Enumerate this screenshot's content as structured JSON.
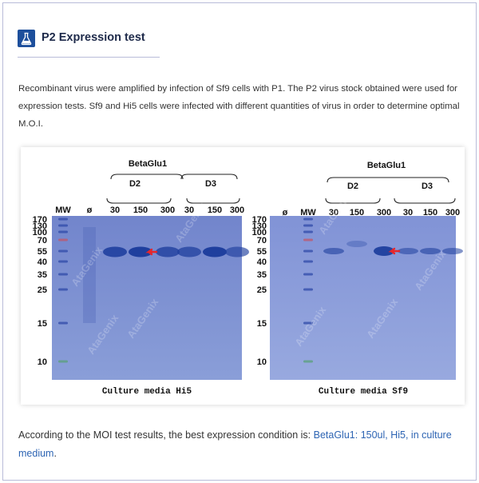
{
  "section": {
    "title": "P2 Expression test",
    "icon": "flask-icon"
  },
  "intro": {
    "text": "Recombinant virus were amplified by infection of Sf9 cells with P1. The P2 virus stock obtained were used for expression tests. Sf9 and Hi5 cells were infected with different quantities of virus in order to determine optimal M.O.I."
  },
  "figure": {
    "construct_label": "BetaGlu1",
    "watermark": "AtaGenix",
    "left_gel": {
      "groups": [
        "D2",
        "D3"
      ],
      "lane_labels": [
        "MW",
        "ø",
        "30",
        "150",
        "300",
        "30",
        "150",
        "300"
      ],
      "mw_markers": [
        "170",
        "130",
        "100",
        "70",
        "55",
        "40",
        "35",
        "25",
        "15",
        "10"
      ],
      "caption": "Culture media Hi5"
    },
    "right_gel": {
      "groups": [
        "D2",
        "D3"
      ],
      "lane_labels": [
        "ø",
        "MW",
        "30",
        "150",
        "300",
        "30",
        "150",
        "300"
      ],
      "mw_markers": [
        "170",
        "130",
        "100",
        "70",
        "55",
        "40",
        "35",
        "25",
        "15",
        "10"
      ],
      "caption": "Culture media Sf9"
    },
    "colors": {
      "gel_background": "#7f94d4",
      "band": "#1f3f9e",
      "arrow": "#e8262a"
    }
  },
  "conclusion": {
    "prefix": "According to the MOI test results, the best expression condition is: ",
    "highlight": "BetaGlu1: 150ul, Hi5, in culture medium",
    "suffix": "."
  }
}
